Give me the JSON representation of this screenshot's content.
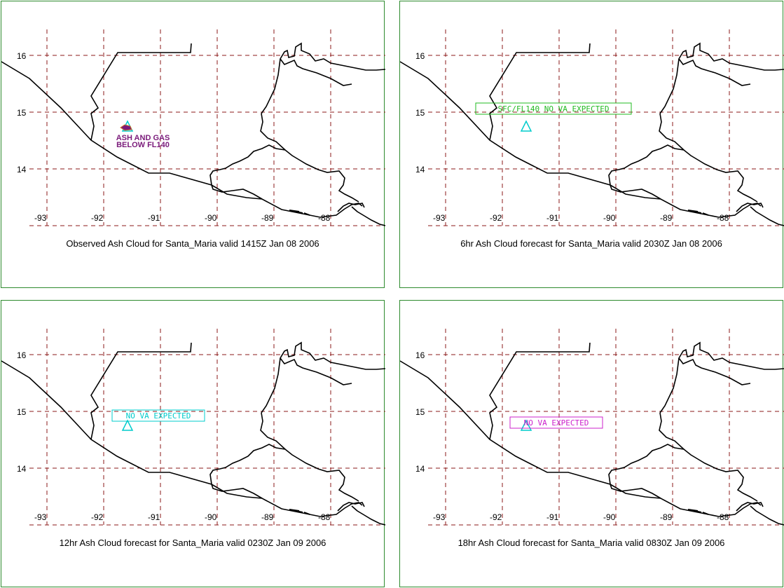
{
  "panels": [
    {
      "caption": "Observed Ash Cloud for Santa_Maria valid 1415Z Jan 08 2006",
      "annotation": {
        "lines": [
          "ASH AND GAS",
          "BELOW  FL140"
        ],
        "color": "#7a1a7a",
        "boxed": false
      }
    },
    {
      "caption": "6hr Ash Cloud forecast for Santa_Maria valid 2030Z Jan 08 2006",
      "annotation": {
        "lines": [
          "SFC/FL140  NO  VA  EXPECTED"
        ],
        "color": "#22bb22",
        "boxed": true
      }
    },
    {
      "caption": "12hr Ash Cloud forecast for Santa_Maria valid 0230Z Jan 09 2006",
      "annotation": {
        "lines": [
          "NO  VA  EXPECTED"
        ],
        "color": "#00cccc",
        "boxed": true
      }
    },
    {
      "caption": "18hr Ash Cloud forecast for Santa_Maria valid 0830Z Jan 09 2006",
      "annotation": {
        "lines": [
          "NO  VA  EXPECTED"
        ],
        "color": "#cc22cc",
        "boxed": true
      }
    }
  ],
  "axes": {
    "lat_labels": [
      "16",
      "15",
      "14"
    ],
    "lon_labels": [
      "-93",
      "-92",
      "-91",
      "-90",
      "-89",
      "-88"
    ]
  },
  "volcano": {
    "name": "Santa_Maria",
    "marker_color": "#00cccc"
  },
  "colors": {
    "grid": "#8b1a1a",
    "border": "#2e8b2e",
    "coast": "#000000"
  }
}
